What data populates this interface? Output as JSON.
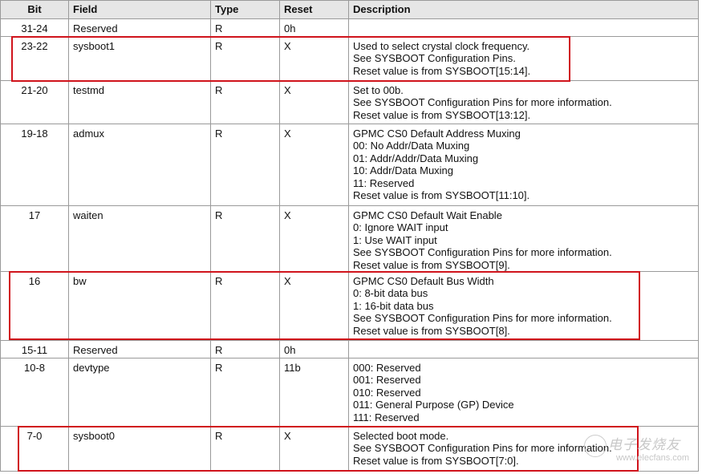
{
  "table": {
    "headers": [
      "Bit",
      "Field",
      "Type",
      "Reset",
      "Description"
    ],
    "rows": [
      {
        "bit": "31-24",
        "field": "Reserved",
        "type": "R",
        "reset": "0h",
        "description": []
      },
      {
        "bit": "23-22",
        "field": "sysboot1",
        "type": "R",
        "reset": "X",
        "description": [
          "Used to select crystal clock frequency.",
          "See SYSBOOT Configuration Pins.",
          "Reset value is from SYSBOOT[15:14]."
        ],
        "highlighted": true
      },
      {
        "bit": "21-20",
        "field": "testmd",
        "type": "R",
        "reset": "X",
        "description": [
          "Set to 00b.",
          "See SYSBOOT Configuration Pins for more information.",
          "Reset value is from SYSBOOT[13:12]."
        ]
      },
      {
        "bit": "19-18",
        "field": "admux",
        "type": "R",
        "reset": "X",
        "description": [
          "GPMC CS0 Default Address Muxing",
          "00: No Addr/Data Muxing",
          "01: Addr/Addr/Data Muxing",
          "10: Addr/Data Muxing",
          "11: Reserved",
          "Reset value is from SYSBOOT[11:10]."
        ]
      },
      {
        "bit": "17",
        "field": "waiten",
        "type": "R",
        "reset": "X",
        "description": [
          "GPMC CS0 Default Wait Enable",
          "0: Ignore WAIT input",
          "1: Use WAIT input",
          "See SYSBOOT Configuration Pins for more information.",
          "Reset value is from SYSBOOT[9]."
        ]
      },
      {
        "bit": "16",
        "field": "bw",
        "type": "R",
        "reset": "X",
        "description": [
          "GPMC CS0 Default Bus Width",
          "0: 8-bit data bus",
          "1: 16-bit data bus",
          "See SYSBOOT Configuration Pins for more information.",
          "Reset value is from SYSBOOT[8]."
        ],
        "highlighted": true
      },
      {
        "bit": "15-11",
        "field": "Reserved",
        "type": "R",
        "reset": "0h",
        "description": []
      },
      {
        "bit": "10-8",
        "field": "devtype",
        "type": "R",
        "reset": "11b",
        "description": [
          "000: Reserved",
          "001: Reserved",
          "010: Reserved",
          "011: General Purpose (GP) Device",
          "111: Reserved"
        ]
      },
      {
        "bit": "7-0",
        "field": "sysboot0",
        "type": "R",
        "reset": "X",
        "description": [
          "Selected boot mode.",
          "See SYSBOOT Configuration Pins for more information.",
          "Reset value is from SYSBOOT[7:0]."
        ],
        "highlighted": true
      }
    ]
  },
  "highlight_color": "#d0141c",
  "watermark": {
    "logo_text": "电子发烧友",
    "url": "www.elecfans.com"
  }
}
